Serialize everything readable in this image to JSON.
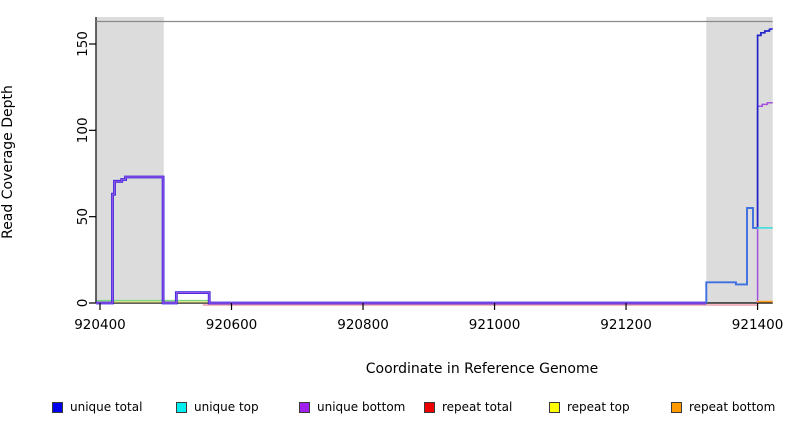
{
  "chart_data": {
    "type": "line",
    "title": "",
    "xlabel": "Coordinate in Reference Genome",
    "ylabel": "Read Coverage Depth",
    "xlim": [
      920394,
      921423
    ],
    "ylim": [
      0,
      165.5
    ],
    "x_ticks": [
      920400,
      920600,
      920800,
      921000,
      921200,
      921400
    ],
    "y_ticks": [
      0,
      50,
      100,
      150
    ],
    "grid": false,
    "legend_position": "bottom",
    "shaded_regions": [
      {
        "name": "left-repeat-region",
        "x0": 920395,
        "x1": 920497,
        "color": "#dcdcdc"
      },
      {
        "name": "right-repeat-region",
        "x0": 921322,
        "x1": 921423,
        "color": "#dcdcdc"
      }
    ],
    "reference_line": {
      "y": 163,
      "color": "#8a8a8a"
    },
    "series": [
      {
        "name": "max-coverage-reference-line",
        "color": "#8a8a8a",
        "width": 1.2,
        "dy": 0,
        "points": [
          [
            920394,
            163
          ],
          [
            921423,
            163
          ]
        ]
      },
      {
        "name": "repeat-total-baseline",
        "color": "#ee8a9a",
        "width": 1.2,
        "dy": 2,
        "points": [
          [
            920556,
            0
          ],
          [
            921401,
            0
          ]
        ]
      },
      {
        "name": "repeat-top-left",
        "color": "#efe98c",
        "width": 1.2,
        "dy": 0,
        "points": [
          [
            920395,
            0.6
          ],
          [
            920567,
            0.6
          ]
        ]
      },
      {
        "name": "unique-top-left-overlap",
        "color": "#7cd87c",
        "width": 1.4,
        "dy": 0,
        "points": [
          [
            920395,
            1.4
          ],
          [
            920567,
            1.4
          ]
        ]
      },
      {
        "name": "unique-total-left-under",
        "color": "#3322dd",
        "width": 2.8,
        "dy": 0,
        "points": [
          [
            920394,
            0
          ],
          [
            920419,
            0
          ],
          [
            920419,
            63
          ],
          [
            920422,
            63
          ],
          [
            920422,
            70.5
          ],
          [
            920433,
            70.5
          ],
          [
            920433,
            71.5
          ],
          [
            920439,
            71.5
          ],
          [
            920439,
            73
          ],
          [
            920496,
            73
          ],
          [
            920496,
            0
          ],
          [
            920516,
            0
          ],
          [
            920516,
            6
          ],
          [
            920566,
            6
          ],
          [
            920566,
            0
          ],
          [
            921322,
            0
          ]
        ]
      },
      {
        "name": "unique-bottom-left-over",
        "color": "#9955e6",
        "width": 1.2,
        "dy": 0,
        "points": [
          [
            920394,
            0
          ],
          [
            920419,
            0
          ],
          [
            920419,
            63
          ],
          [
            920422,
            63
          ],
          [
            920422,
            70.5
          ],
          [
            920433,
            70.5
          ],
          [
            920433,
            71.5
          ],
          [
            920439,
            71.5
          ],
          [
            920439,
            73
          ],
          [
            920496,
            73
          ],
          [
            920496,
            0
          ],
          [
            920516,
            0
          ],
          [
            920516,
            6
          ],
          [
            920566,
            6
          ],
          [
            920566,
            0
          ],
          [
            921322,
            0
          ]
        ]
      },
      {
        "name": "unique-total-right-low",
        "color": "#3d6fe0",
        "width": 1.9,
        "dy": 0,
        "points": [
          [
            921322,
            0
          ],
          [
            921322,
            12
          ],
          [
            921367,
            12
          ],
          [
            921367,
            10.8
          ],
          [
            921384,
            10.8
          ],
          [
            921384,
            55
          ],
          [
            921393,
            55
          ],
          [
            921393,
            43.5
          ],
          [
            921400,
            43.5
          ]
        ]
      },
      {
        "name": "unique-bottom-right",
        "color": "#a34fe0",
        "width": 1.5,
        "dy": 0,
        "points": [
          [
            921400,
            0
          ],
          [
            921400,
            114
          ],
          [
            921407,
            114
          ],
          [
            921407,
            115
          ],
          [
            921415,
            115
          ],
          [
            921415,
            116
          ],
          [
            921423,
            116
          ]
        ]
      },
      {
        "name": "unique-total-right-high",
        "color": "#2222cc",
        "width": 1.7,
        "dy": 0,
        "points": [
          [
            921400,
            43.5
          ],
          [
            921400,
            155
          ],
          [
            921405,
            155
          ],
          [
            921405,
            156.5
          ],
          [
            921411,
            156.5
          ],
          [
            921411,
            157.5
          ],
          [
            921418,
            157.5
          ],
          [
            921418,
            158.5
          ],
          [
            921423,
            158.8
          ]
        ]
      },
      {
        "name": "unique-top-right",
        "color": "#33dddd",
        "width": 1.5,
        "dy": 0,
        "points": [
          [
            921399,
            43.5
          ],
          [
            921423,
            43.5
          ]
        ]
      },
      {
        "name": "repeat-bottom-right",
        "color": "#ff9d1e",
        "width": 1.6,
        "dy": 0,
        "points": [
          [
            921399,
            0.8
          ],
          [
            921423,
            0.8
          ]
        ]
      }
    ],
    "legend": [
      {
        "label": "unique total",
        "color": "#0000ee"
      },
      {
        "label": "unique top",
        "color": "#00eeee"
      },
      {
        "label": "unique bottom",
        "color": "#a020f0"
      },
      {
        "label": "repeat total",
        "color": "#ee0000"
      },
      {
        "label": "repeat top",
        "color": "#ffff00"
      },
      {
        "label": "repeat bottom",
        "color": "#ff9900"
      }
    ],
    "legend_item_x": [
      52,
      176,
      299,
      424,
      549,
      671
    ]
  }
}
